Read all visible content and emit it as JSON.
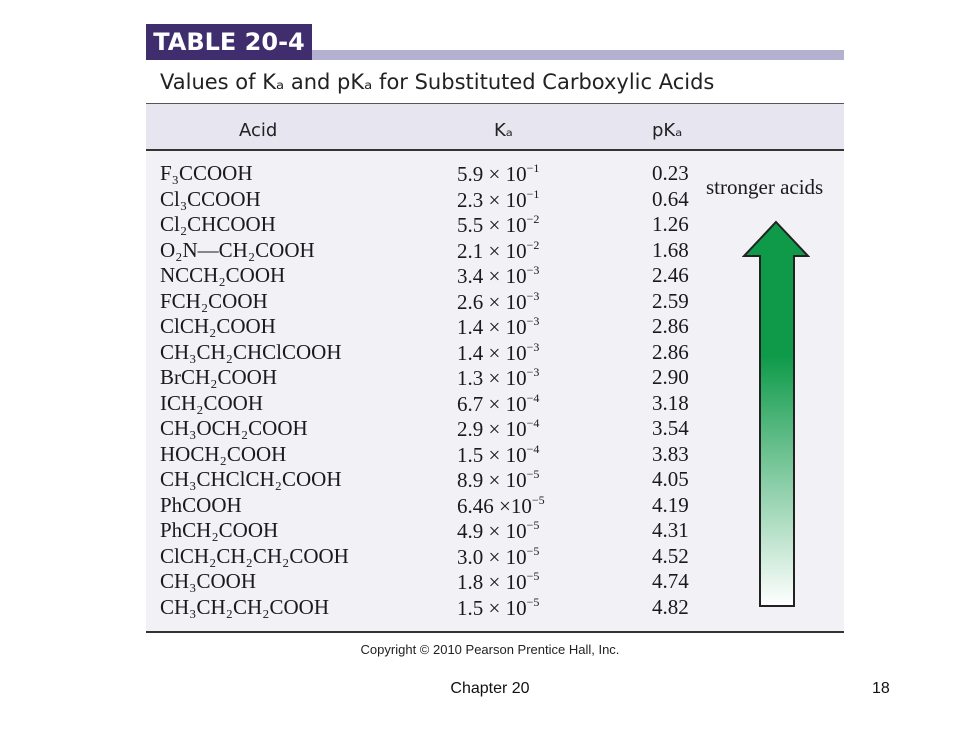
{
  "table_tag": "TABLE 20-4",
  "title": "Values of Kₐ and pKₐ for Substituted Carboxylic Acids",
  "headers": {
    "acid": "Acid",
    "ka": "Kₐ",
    "pka": "pKₐ"
  },
  "rows": [
    {
      "acid": "F₃CCOOH",
      "ka_mant": "5.9 × 10",
      "ka_exp": "−1",
      "pka": "0.23"
    },
    {
      "acid": "Cl₃CCOOH",
      "ka_mant": "2.3 × 10",
      "ka_exp": "−1",
      "pka": "0.64"
    },
    {
      "acid": "Cl₂CHCOOH",
      "ka_mant": "5.5 × 10",
      "ka_exp": "−2",
      "pka": "1.26"
    },
    {
      "acid": "O₂N—CH₂COOH",
      "ka_mant": "2.1 × 10",
      "ka_exp": "−2",
      "pka": "1.68"
    },
    {
      "acid": "NCCH₂COOH",
      "ka_mant": "3.4 × 10",
      "ka_exp": "−3",
      "pka": "2.46"
    },
    {
      "acid": "FCH₂COOH",
      "ka_mant": "2.6 × 10",
      "ka_exp": "−3",
      "pka": "2.59"
    },
    {
      "acid": "ClCH₂COOH",
      "ka_mant": "1.4 × 10",
      "ka_exp": "−3",
      "pka": "2.86"
    },
    {
      "acid": "CH₃CH₂CHClCOOH",
      "ka_mant": "1.4 × 10",
      "ka_exp": "−3",
      "pka": "2.86"
    },
    {
      "acid": "BrCH₂COOH",
      "ka_mant": "1.3 × 10",
      "ka_exp": "−3",
      "pka": "2.90"
    },
    {
      "acid": "ICH₂COOH",
      "ka_mant": "6.7 × 10",
      "ka_exp": "−4",
      "pka": "3.18"
    },
    {
      "acid": "CH₃OCH₂COOH",
      "ka_mant": "2.9 × 10",
      "ka_exp": "−4",
      "pka": "3.54"
    },
    {
      "acid": "HOCH₂COOH",
      "ka_mant": "1.5 × 10",
      "ka_exp": "−4",
      "pka": "3.83"
    },
    {
      "acid": "CH₃CHClCH₂COOH",
      "ka_mant": "8.9 × 10",
      "ka_exp": "−5",
      "pka": "4.05"
    },
    {
      "acid": "PhCOOH",
      "ka_mant": "6.46 ×10",
      "ka_exp": "−5",
      "pka": "4.19"
    },
    {
      "acid": "PhCH₂COOH",
      "ka_mant": "4.9 × 10",
      "ka_exp": "−5",
      "pka": "4.31"
    },
    {
      "acid": "ClCH₂CH₂CH₂COOH",
      "ka_mant": "3.0 × 10",
      "ka_exp": "−5",
      "pka": "4.52"
    },
    {
      "acid": "CH₃COOH",
      "ka_mant": "1.8 × 10",
      "ka_exp": "−5",
      "pka": "4.74"
    },
    {
      "acid": "CH₃CH₂CH₂COOH",
      "ka_mant": "1.5 × 10",
      "ka_exp": "−5",
      "pka": "4.82"
    }
  ],
  "note": "stronger acids",
  "arrow_color": "#0f9a4a",
  "copyright": "Copyright © 2010 Pearson Prentice Hall, Inc.",
  "footer": {
    "chapter": "Chapter 20",
    "page": "18"
  }
}
